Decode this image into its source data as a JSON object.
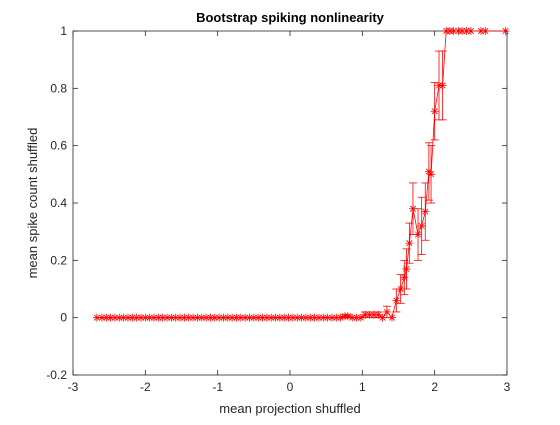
{
  "chart_data": {
    "type": "line",
    "title": "Bootstrap spiking nonlinearity",
    "xlabel": "mean projection shuffled",
    "ylabel": "mean spike count shuffled",
    "xlim": [
      -3,
      3
    ],
    "ylim": [
      -0.2,
      1
    ],
    "xticks": [
      -3,
      -2,
      -1,
      0,
      1,
      2,
      3
    ],
    "yticks": [
      -0.2,
      0,
      0.2,
      0.4,
      0.6,
      0.8,
      1
    ],
    "xtick_labels": [
      "-3",
      "-2",
      "-1",
      "0",
      "1",
      "2",
      "3"
    ],
    "ytick_labels": [
      "-0.2",
      "0",
      "0.2",
      "0.4",
      "0.6",
      "0.8",
      "1"
    ],
    "grid": false,
    "box": true,
    "marker": "asterisk",
    "color": "#ff0000",
    "axes_color": "#262626",
    "series": [
      {
        "x": [
          -2.67,
          -2.6,
          -2.54,
          -2.48,
          -2.42,
          -2.36,
          -2.3,
          -2.24,
          -2.18,
          -2.12,
          -2.06,
          -2.0,
          -1.94,
          -1.88,
          -1.82,
          -1.76,
          -1.7,
          -1.64,
          -1.58,
          -1.52,
          -1.46,
          -1.4,
          -1.34,
          -1.28,
          -1.22,
          -1.16,
          -1.1,
          -1.04,
          -0.98,
          -0.92,
          -0.86,
          -0.8,
          -0.74,
          -0.68,
          -0.62,
          -0.56,
          -0.5,
          -0.44,
          -0.38,
          -0.32,
          -0.26,
          -0.2,
          -0.14,
          -0.08,
          -0.02,
          0.04,
          0.1,
          0.16,
          0.22,
          0.28,
          0.34,
          0.4,
          0.46,
          0.52,
          0.58,
          0.64,
          0.7,
          0.76,
          0.8,
          0.86,
          0.92,
          0.98,
          1.04,
          1.1,
          1.16,
          1.22,
          1.28,
          1.34,
          1.41,
          1.47,
          1.53,
          1.58,
          1.61,
          1.65,
          1.7,
          1.77,
          1.82,
          1.87,
          1.92,
          1.95,
          2.0,
          2.06,
          2.11,
          2.16,
          2.21,
          2.26,
          2.33,
          2.38,
          2.44,
          2.5,
          2.64,
          2.7,
          2.98
        ],
        "y": [
          0,
          0,
          0,
          0,
          0,
          0,
          0,
          0,
          0,
          0,
          0,
          0,
          0,
          0,
          0,
          0,
          0,
          0,
          0,
          0,
          0,
          0,
          0,
          0,
          0,
          0,
          0,
          0,
          0,
          0,
          0,
          0,
          0,
          0,
          0,
          0,
          0,
          0,
          0,
          0,
          0,
          0,
          0,
          0,
          0,
          0,
          0,
          0,
          0,
          0,
          0,
          0,
          0,
          0,
          0,
          0,
          0,
          0.005,
          0.005,
          0,
          0,
          0,
          0.01,
          0.01,
          0.01,
          0.01,
          0,
          0.02,
          0,
          0.06,
          0.1,
          0.14,
          0.17,
          0.26,
          0.38,
          0.29,
          0.32,
          0.37,
          0.51,
          0.5,
          0.72,
          0.81,
          0.81,
          1,
          1,
          1,
          1,
          1,
          1,
          1,
          1,
          1,
          1
        ],
        "err_low": [
          0,
          0,
          0,
          0,
          0,
          0,
          0,
          0,
          0,
          0,
          0,
          0,
          0,
          0,
          0,
          0,
          0,
          0,
          0,
          0,
          0,
          0,
          0,
          0,
          0,
          0,
          0,
          0,
          0,
          0,
          0,
          0,
          0,
          0,
          0,
          0,
          0,
          0,
          0,
          0,
          0,
          0,
          0,
          0,
          0,
          0,
          0,
          0,
          0,
          0,
          0,
          0,
          0,
          0,
          0,
          0,
          0,
          0.005,
          0.005,
          0,
          0,
          0,
          0.01,
          0.01,
          0.01,
          0.01,
          0,
          0.02,
          0,
          0.04,
          0.05,
          0.06,
          0.07,
          0.07,
          0.09,
          0.09,
          0.1,
          0.1,
          0.1,
          0.1,
          0.1,
          0.12,
          0.12,
          0,
          0,
          0,
          0,
          0,
          0,
          0,
          0,
          0,
          0
        ],
        "err_high": [
          0,
          0,
          0,
          0,
          0,
          0,
          0,
          0,
          0,
          0,
          0,
          0,
          0,
          0,
          0,
          0,
          0,
          0,
          0,
          0,
          0,
          0,
          0,
          0,
          0,
          0,
          0,
          0,
          0,
          0,
          0,
          0,
          0,
          0,
          0,
          0,
          0,
          0,
          0,
          0,
          0,
          0,
          0,
          0,
          0,
          0,
          0,
          0,
          0,
          0,
          0,
          0,
          0,
          0,
          0,
          0,
          0,
          0.005,
          0.005,
          0,
          0,
          0,
          0.01,
          0.01,
          0.01,
          0.01,
          0,
          0.02,
          0,
          0.04,
          0.05,
          0.06,
          0.07,
          0.07,
          0.09,
          0.09,
          0.1,
          0.1,
          0.1,
          0.1,
          0.1,
          0.12,
          0.12,
          0,
          0,
          0,
          0,
          0,
          0,
          0,
          0,
          0,
          0
        ]
      }
    ]
  }
}
